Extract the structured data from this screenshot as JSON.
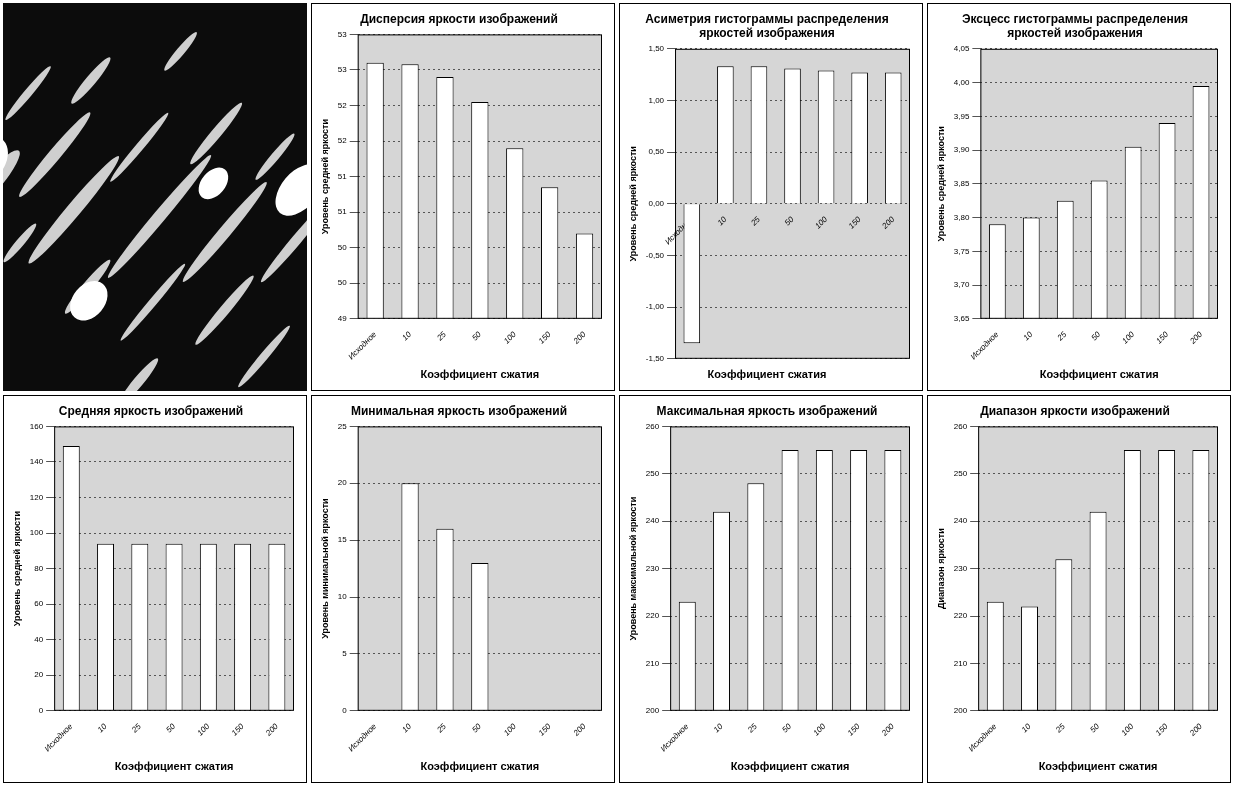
{
  "chart_data": [
    {
      "type": "bar",
      "title": "Дисперсия яркости изображений",
      "x_label": "Коэффициент сжатия",
      "y_label": "Уровень средней яркости",
      "categories": [
        "Исходное",
        "10",
        "25",
        "50",
        "100",
        "150",
        "200"
      ],
      "values": [
        52.6,
        52.58,
        52.4,
        52.05,
        51.4,
        50.85,
        50.2
      ],
      "color": "#ffffff",
      "ylim": [
        49,
        53
      ],
      "yticks": [
        49,
        {
          "value": 49.5,
          "label": "50"
        },
        50,
        {
          "value": 50.5,
          "label": "51"
        },
        51,
        {
          "value": 51.5,
          "label": "52"
        },
        52,
        {
          "value": 52.5,
          "label": "53"
        },
        53
      ],
      "grid": true
    },
    {
      "type": "bar",
      "title": "Асиметрия гистограммы распределения яркостей изображения",
      "x_label": "Коэффициент сжатия",
      "y_label": "Уровень средней яркости",
      "categories": [
        "Исходное",
        "10",
        "25",
        "50",
        "100",
        "150",
        "200"
      ],
      "values": [
        -1.35,
        1.33,
        1.33,
        1.31,
        1.29,
        1.27,
        1.27
      ],
      "color": "#ffffff",
      "ylim": [
        -1.5,
        1.5
      ],
      "yticks": [
        {
          "value": -1.5,
          "label": "-1,50"
        },
        {
          "value": -1,
          "label": "-1,00"
        },
        {
          "value": -0.5,
          "label": "-0,50"
        },
        {
          "value": 0,
          "label": "0,00"
        },
        {
          "value": 0.5,
          "label": "0,50"
        },
        {
          "value": 1,
          "label": "1,00"
        },
        {
          "value": 1.5,
          "label": "1,50"
        }
      ],
      "grid": true
    },
    {
      "type": "bar",
      "title": "Эксцесс гистограммы распределения яркостей изображения",
      "x_label": "Коэффициент сжатия",
      "y_label": "Уровень средней яркости",
      "categories": [
        "Исходное",
        "10",
        "25",
        "50",
        "100",
        "150",
        "200"
      ],
      "values": [
        3.79,
        3.8,
        3.825,
        3.855,
        3.905,
        3.94,
        3.995
      ],
      "color": "#ffffff",
      "ylim": [
        3.65,
        4.05
      ],
      "yticks": [
        {
          "value": 3.65,
          "label": "3,65"
        },
        {
          "value": 3.7,
          "label": "3,70"
        },
        {
          "value": 3.75,
          "label": "3,75"
        },
        {
          "value": 3.8,
          "label": "3,80"
        },
        {
          "value": 3.85,
          "label": "3,85"
        },
        {
          "value": 3.9,
          "label": "3,90"
        },
        {
          "value": 3.95,
          "label": "3,95"
        },
        {
          "value": 4,
          "label": "4,00"
        },
        {
          "value": 4.05,
          "label": "4,05"
        }
      ],
      "grid": true
    },
    {
      "type": "bar",
      "title": "Средняя яркость изображений",
      "x_label": "Коэффициент сжатия",
      "y_label": "Уровень средней яркости",
      "categories": [
        "Исходное",
        "10",
        "25",
        "50",
        "100",
        "150",
        "200"
      ],
      "values": [
        149,
        94,
        94,
        94,
        94,
        94,
        94
      ],
      "color": "#ffffff",
      "ylim": [
        0,
        160
      ],
      "yticks": [
        0,
        20,
        40,
        60,
        80,
        100,
        120,
        140,
        160
      ],
      "grid": true
    },
    {
      "type": "bar",
      "title": "Минимальная яркость изображений",
      "x_label": "Коэффициент сжатия",
      "y_label": "Уровень минимальной яркости",
      "categories": [
        "Исходное",
        "10",
        "25",
        "50",
        "100",
        "150",
        "200"
      ],
      "values": [
        0,
        20,
        16,
        13,
        0,
        0,
        0
      ],
      "color": "#ffffff",
      "ylim": [
        0,
        25
      ],
      "yticks": [
        0,
        5,
        10,
        15,
        20,
        25
      ],
      "grid": true
    },
    {
      "type": "bar",
      "title": "Максимальная яркость изображений",
      "x_label": "Коэффициент сжатия",
      "y_label": "Уровень максимальной яркости",
      "categories": [
        "Исходное",
        "10",
        "25",
        "50",
        "100",
        "150",
        "200"
      ],
      "values": [
        223,
        242,
        248,
        255,
        255,
        255,
        255
      ],
      "color": "#ffffff",
      "ylim": [
        200,
        260
      ],
      "yticks": [
        200,
        210,
        220,
        230,
        240,
        250,
        260
      ],
      "grid": true
    },
    {
      "type": "bar",
      "title": "Диапазон яркости изображений",
      "x_label": "Коэффициент сжатия",
      "y_label": "Диапазон яркости",
      "categories": [
        "Исходное",
        "10",
        "25",
        "50",
        "100",
        "150",
        "200"
      ],
      "values": [
        223,
        222,
        232,
        242,
        255,
        255,
        255
      ],
      "color": "#ffffff",
      "ylim": [
        200,
        260
      ],
      "yticks": [
        200,
        210,
        220,
        230,
        240,
        250,
        260
      ],
      "grid": true
    }
  ]
}
